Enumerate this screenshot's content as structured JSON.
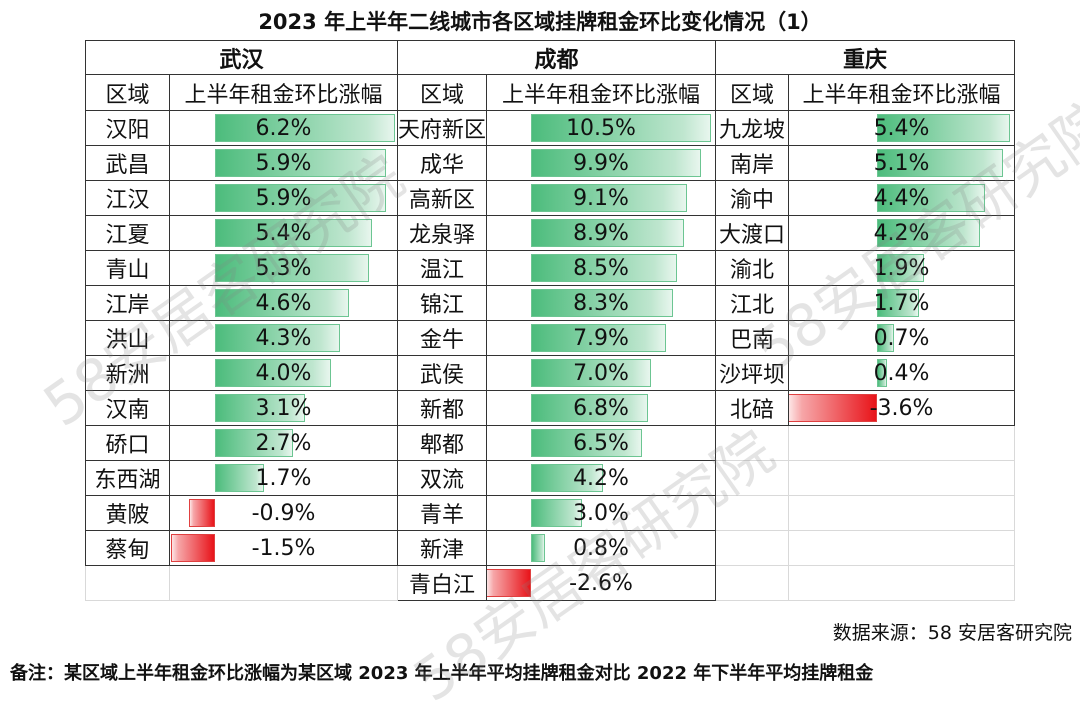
{
  "title": "2023 年上半年二线城市各区域挂牌租金环比变化情况（1）",
  "colors": {
    "positive": "#4cbc7c",
    "negative": "#e8141a"
  },
  "chart_data": {
    "type": "table",
    "col_headers": [
      "区域",
      "上半年租金环比涨幅"
    ],
    "cities": [
      {
        "name": "武汉",
        "rows": [
          {
            "region": "汉阳",
            "label": "6.2%",
            "value": 6.2
          },
          {
            "region": "武昌",
            "label": "5.9%",
            "value": 5.9
          },
          {
            "region": "江汉",
            "label": "5.9%",
            "value": 5.9
          },
          {
            "region": "江夏",
            "label": "5.4%",
            "value": 5.4
          },
          {
            "region": "青山",
            "label": "5.3%",
            "value": 5.3
          },
          {
            "region": "江岸",
            "label": "4.6%",
            "value": 4.6
          },
          {
            "region": "洪山",
            "label": "4.3%",
            "value": 4.3
          },
          {
            "region": "新洲",
            "label": "4.0%",
            "value": 4.0
          },
          {
            "region": "汉南",
            "label": "3.1%",
            "value": 3.1
          },
          {
            "region": "硚口",
            "label": "2.7%",
            "value": 2.7
          },
          {
            "region": "东西湖",
            "label": "1.7%",
            "value": 1.7
          },
          {
            "region": "黄陂",
            "label": "-0.9%",
            "value": -0.9
          },
          {
            "region": "蔡甸",
            "label": "-1.5%",
            "value": -1.5
          }
        ]
      },
      {
        "name": "成都",
        "rows": [
          {
            "region": "天府新区",
            "label": "10.5%",
            "value": 10.5
          },
          {
            "region": "成华",
            "label": "9.9%",
            "value": 9.9
          },
          {
            "region": "高新区",
            "label": "9.1%",
            "value": 9.1
          },
          {
            "region": "龙泉驿",
            "label": "8.9%",
            "value": 8.9
          },
          {
            "region": "温江",
            "label": "8.5%",
            "value": 8.5
          },
          {
            "region": "锦江",
            "label": "8.3%",
            "value": 8.3
          },
          {
            "region": "金牛",
            "label": "7.9%",
            "value": 7.9
          },
          {
            "region": "武侯",
            "label": "7.0%",
            "value": 7.0
          },
          {
            "region": "新都",
            "label": "6.8%",
            "value": 6.8
          },
          {
            "region": "郫都",
            "label": "6.5%",
            "value": 6.5
          },
          {
            "region": "双流",
            "label": "4.2%",
            "value": 4.2
          },
          {
            "region": "青羊",
            "label": "3.0%",
            "value": 3.0
          },
          {
            "region": "新津",
            "label": "0.8%",
            "value": 0.8
          },
          {
            "region": "青白江",
            "label": "-2.6%",
            "value": -2.6
          }
        ]
      },
      {
        "name": "重庆",
        "rows": [
          {
            "region": "九龙坡",
            "label": "5.4%",
            "value": 5.4
          },
          {
            "region": "南岸",
            "label": "5.1%",
            "value": 5.1
          },
          {
            "region": "渝中",
            "label": "4.4%",
            "value": 4.4
          },
          {
            "region": "大渡口",
            "label": "4.2%",
            "value": 4.2
          },
          {
            "region": "渝北",
            "label": "1.9%",
            "value": 1.9
          },
          {
            "region": "江北",
            "label": "1.7%",
            "value": 1.7
          },
          {
            "region": "巴南",
            "label": "0.7%",
            "value": 0.7
          },
          {
            "region": "沙坪坝",
            "label": "0.4%",
            "value": 0.4
          },
          {
            "region": "北碚",
            "label": "-3.6%",
            "value": -3.6
          }
        ]
      }
    ]
  },
  "source": "数据来源：58 安居客研究院",
  "note": "备注：某区域上半年租金环比涨幅为某区域 2023 年上半年平均挂牌租金对比 2022 年下半年平均挂牌租金",
  "watermark": "58安居客研究院"
}
